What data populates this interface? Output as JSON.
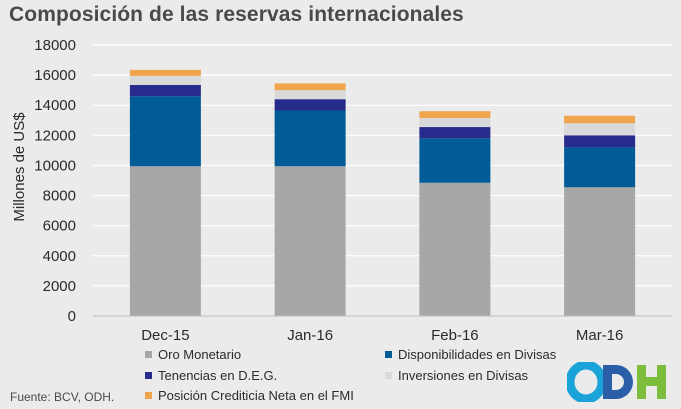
{
  "title": "Composición de las reservas internacionales",
  "source": "Fuente: BCV, ODH.",
  "logo_text": "ODH",
  "chart_data": {
    "type": "bar",
    "stacked": true,
    "title": "Composición de las reservas internacionales",
    "ylabel": "Millones de US$",
    "xlabel": "",
    "ylim": [
      0,
      18000
    ],
    "yticks": [
      0,
      2000,
      4000,
      6000,
      8000,
      10000,
      12000,
      14000,
      16000,
      18000
    ],
    "grid": true,
    "legend_position": "bottom",
    "categories": [
      "Dec-15",
      "Jan-16",
      "Feb-16",
      "Mar-16"
    ],
    "series": [
      {
        "name": "Oro Monetario",
        "color": "#a5a7a9",
        "values": [
          9950,
          9950,
          8850,
          8550
        ]
      },
      {
        "name": "Disponibilidades en Divisas",
        "color": "#005b96",
        "values": [
          4650,
          3700,
          2950,
          2650
        ]
      },
      {
        "name": "Tenencias en D.E.G.",
        "color": "#262b8c",
        "values": [
          750,
          750,
          750,
          800
        ]
      },
      {
        "name": "Inversiones en Divisas",
        "color": "#d9d9d9",
        "values": [
          600,
          600,
          600,
          800
        ]
      },
      {
        "name": "Posición Crediticia Neta en el FMI",
        "color": "#f0a44b",
        "values": [
          400,
          450,
          450,
          500
        ]
      }
    ]
  }
}
